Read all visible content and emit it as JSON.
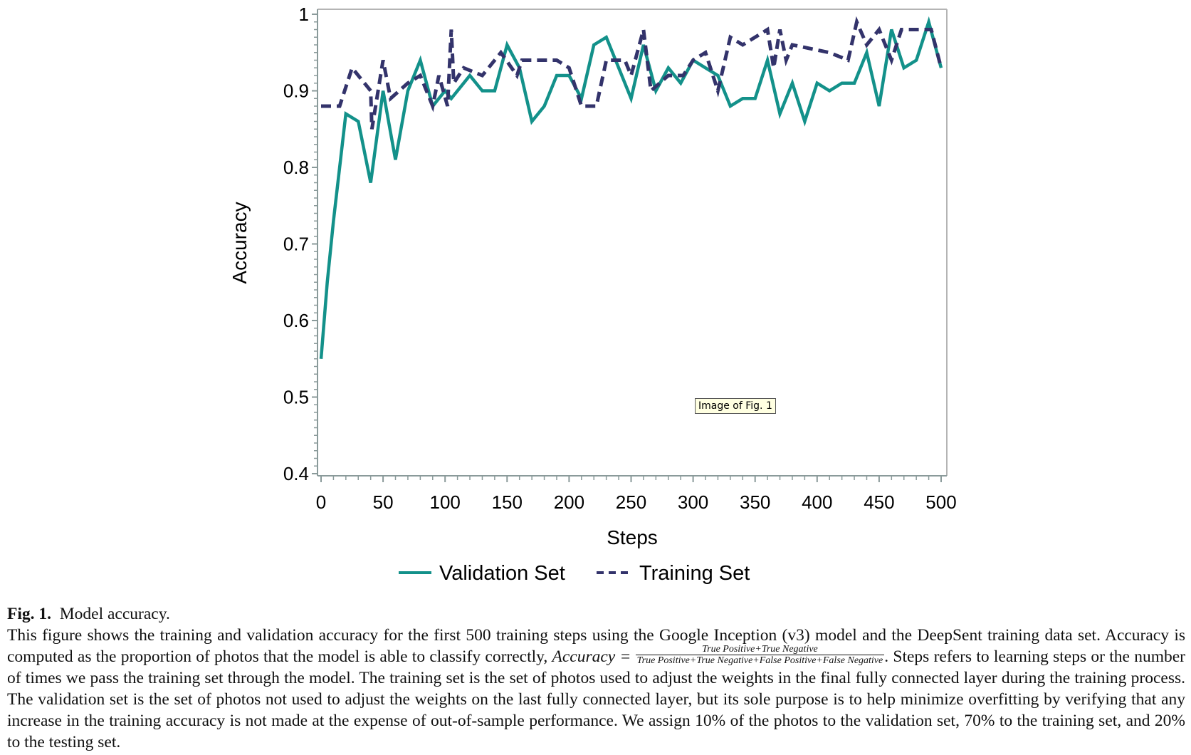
{
  "chart_data": {
    "type": "line",
    "title": "",
    "xlabel": "Steps",
    "ylabel": "Accuracy",
    "xlim": [
      0,
      500
    ],
    "ylim": [
      0.4,
      1.0
    ],
    "x_ticks": [
      0,
      50,
      100,
      150,
      200,
      250,
      300,
      350,
      400,
      450,
      500
    ],
    "x_tick_labels": [
      "0",
      "50",
      "100",
      "150",
      "200",
      "250",
      "300",
      "350",
      "400",
      "450",
      "500"
    ],
    "y_ticks": [
      0.4,
      0.5,
      0.6,
      0.7,
      0.8,
      0.9,
      1.0
    ],
    "y_tick_labels": [
      "0.4",
      "0.5",
      "0.6",
      "0.7",
      "0.8",
      "0.9",
      "1"
    ],
    "grid": false,
    "legend_position": "bottom-center",
    "series": [
      {
        "name": "Validation Set",
        "color": "#13918a",
        "style": "solid",
        "points": [
          [
            0,
            0.55
          ],
          [
            5,
            0.65
          ],
          [
            10,
            0.73
          ],
          [
            20,
            0.87
          ],
          [
            30,
            0.86
          ],
          [
            40,
            0.78
          ],
          [
            50,
            0.9
          ],
          [
            60,
            0.81
          ],
          [
            70,
            0.9
          ],
          [
            80,
            0.94
          ],
          [
            90,
            0.88
          ],
          [
            100,
            0.9
          ],
          [
            105,
            0.89
          ],
          [
            120,
            0.92
          ],
          [
            130,
            0.9
          ],
          [
            140,
            0.9
          ],
          [
            150,
            0.96
          ],
          [
            160,
            0.93
          ],
          [
            170,
            0.86
          ],
          [
            180,
            0.88
          ],
          [
            190,
            0.92
          ],
          [
            200,
            0.92
          ],
          [
            210,
            0.89
          ],
          [
            220,
            0.96
          ],
          [
            230,
            0.97
          ],
          [
            240,
            0.93
          ],
          [
            250,
            0.89
          ],
          [
            260,
            0.96
          ],
          [
            270,
            0.9
          ],
          [
            280,
            0.93
          ],
          [
            290,
            0.91
          ],
          [
            300,
            0.94
          ],
          [
            310,
            0.93
          ],
          [
            320,
            0.92
          ],
          [
            330,
            0.88
          ],
          [
            340,
            0.89
          ],
          [
            350,
            0.89
          ],
          [
            360,
            0.94
          ],
          [
            370,
            0.87
          ],
          [
            380,
            0.91
          ],
          [
            390,
            0.86
          ],
          [
            400,
            0.91
          ],
          [
            410,
            0.9
          ],
          [
            420,
            0.91
          ],
          [
            430,
            0.91
          ],
          [
            440,
            0.95
          ],
          [
            450,
            0.88
          ],
          [
            460,
            0.98
          ],
          [
            470,
            0.93
          ],
          [
            480,
            0.94
          ],
          [
            490,
            0.99
          ],
          [
            500,
            0.93
          ]
        ]
      },
      {
        "name": "Training Set",
        "color": "#33336b",
        "style": "dashed",
        "points": [
          [
            0,
            0.88
          ],
          [
            15,
            0.88
          ],
          [
            25,
            0.93
          ],
          [
            40,
            0.9
          ],
          [
            41,
            0.85
          ],
          [
            50,
            0.94
          ],
          [
            56,
            0.89
          ],
          [
            70,
            0.91
          ],
          [
            80,
            0.92
          ],
          [
            90,
            0.88
          ],
          [
            95,
            0.92
          ],
          [
            102,
            0.88
          ],
          [
            105,
            0.98
          ],
          [
            107,
            0.91
          ],
          [
            115,
            0.93
          ],
          [
            130,
            0.92
          ],
          [
            145,
            0.95
          ],
          [
            158,
            0.92
          ],
          [
            162,
            0.94
          ],
          [
            190,
            0.94
          ],
          [
            200,
            0.93
          ],
          [
            210,
            0.88
          ],
          [
            222,
            0.88
          ],
          [
            230,
            0.94
          ],
          [
            245,
            0.94
          ],
          [
            250,
            0.92
          ],
          [
            260,
            0.98
          ],
          [
            266,
            0.9
          ],
          [
            280,
            0.92
          ],
          [
            292,
            0.92
          ],
          [
            300,
            0.94
          ],
          [
            310,
            0.95
          ],
          [
            320,
            0.9
          ],
          [
            330,
            0.97
          ],
          [
            340,
            0.96
          ],
          [
            360,
            0.98
          ],
          [
            365,
            0.93
          ],
          [
            370,
            0.98
          ],
          [
            375,
            0.94
          ],
          [
            380,
            0.96
          ],
          [
            410,
            0.95
          ],
          [
            425,
            0.94
          ],
          [
            432,
            0.99
          ],
          [
            440,
            0.96
          ],
          [
            450,
            0.98
          ],
          [
            460,
            0.94
          ],
          [
            468,
            0.98
          ],
          [
            480,
            0.98
          ],
          [
            492,
            0.98
          ],
          [
            500,
            0.93
          ]
        ]
      }
    ]
  },
  "tooltip": {
    "text": "Image of Fig. 1"
  },
  "caption": {
    "fig_label": "Fig. 1.",
    "title": "Model accuracy.",
    "para_part1": "This figure shows the training and validation accuracy for the first 500 training steps using the Google Inception (v3) model and the DeepSent training data set. Accuracy is computed as the proportion of photos that the model is able to classify correctly,",
    "formula_lhs": "Accuracy =",
    "formula_numerator": "True Positive+True Negative",
    "formula_denominator": "True Positive+True Negative+False Positive+False Negative",
    "formula_end": ".",
    "para_part2": "Steps refers to learning steps or the number of times we pass the training set through the model. The training set is the set of photos used to adjust the weights in the final fully connected layer during the training process. The validation set is the set of photos not used to adjust the weights on the last fully connected layer, but its sole purpose is to help minimize overfitting by verifying that any increase in the training accuracy is not made at the expense of out-of-sample performance. We assign 10% of the photos to the validation set, 70% to the training set, and 20% to the testing set."
  }
}
